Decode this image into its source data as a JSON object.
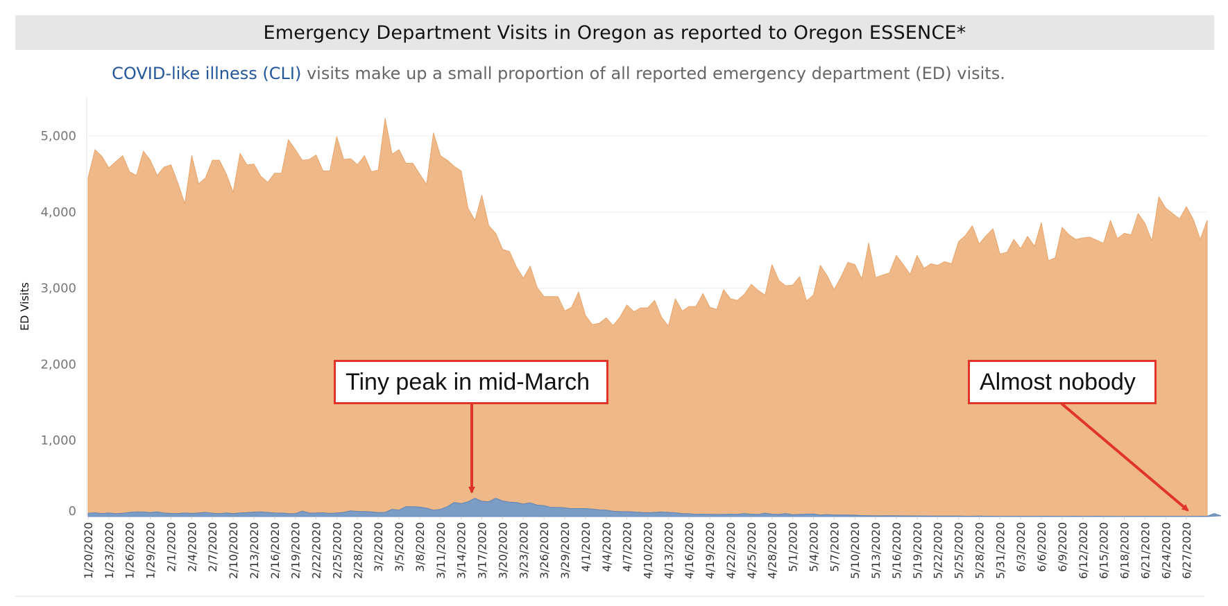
{
  "title": "Emergency Department Visits in Oregon as reported to Oregon ESSENCE*",
  "subtitle": {
    "highlight": "COVID-like illness (CLI)",
    "rest": " visits make up a small proportion of all reported emergency department (ED) visits."
  },
  "annotations": {
    "peak": "Tiny peak in mid-March",
    "nobody": "Almost nobody"
  },
  "colors": {
    "total_fill": "#efb888",
    "total_line": "#e7a56b",
    "cli_fill": "#7b9cc4",
    "cli_line": "#5f84b4",
    "arrow": "#e0342a"
  },
  "chart_data": {
    "type": "area",
    "ylabel": "ED Visits",
    "ylim": [
      0,
      5300
    ],
    "yticks": [
      0,
      1000,
      2000,
      3000,
      4000,
      5000
    ],
    "ytick_labels": [
      "0",
      "1,000",
      "2,000",
      "3,000",
      "4,000",
      "5,000"
    ],
    "grid": true,
    "x_start": "1/20/2020",
    "x_end": "6/29/2020",
    "xtick_labels": [
      "1/20/2020",
      "1/23/2020",
      "1/26/2020",
      "1/29/2020",
      "2/1/2020",
      "2/4/2020",
      "2/7/2020",
      "2/10/2020",
      "2/13/2020",
      "2/16/2020",
      "2/19/2020",
      "2/22/2020",
      "2/25/2020",
      "2/28/2020",
      "3/2/2020",
      "3/5/2020",
      "3/8/2020",
      "3/11/2020",
      "3/14/2020",
      "3/17/2020",
      "3/20/2020",
      "3/23/2020",
      "3/26/2020",
      "3/29/2020",
      "4/1/2020",
      "4/4/2020",
      "4/7/2020",
      "4/10/2020",
      "4/13/2020",
      "4/16/2020",
      "4/19/2020",
      "4/22/2020",
      "4/25/2020",
      "4/28/2020",
      "5/1/2020",
      "5/4/2020",
      "5/7/2020",
      "5/10/2020",
      "5/13/2020",
      "5/16/2020",
      "5/19/2020",
      "5/22/2020",
      "5/25/2020",
      "5/28/2020",
      "5/31/2020",
      "6/3/2020",
      "6/6/2020",
      "6/9/2020",
      "6/12/2020",
      "6/15/2020",
      "6/18/2020",
      "6/21/2020",
      "6/24/2020",
      "6/27/2020"
    ],
    "series": [
      {
        "name": "ED visits",
        "values": [
          4450,
          4820,
          4730,
          4580,
          4660,
          4740,
          4530,
          4480,
          4800,
          4680,
          4480,
          4590,
          4620,
          4380,
          4110,
          4740,
          4370,
          4450,
          4680,
          4680,
          4500,
          4260,
          4770,
          4620,
          4630,
          4470,
          4390,
          4510,
          4510,
          4950,
          4820,
          4680,
          4690,
          4750,
          4540,
          4540,
          4990,
          4690,
          4700,
          4620,
          4740,
          4530,
          4550,
          5230,
          4760,
          4820,
          4640,
          4640,
          4500,
          4360,
          5040,
          4740,
          4680,
          4600,
          4540,
          4050,
          3890,
          4220,
          3820,
          3720,
          3510,
          3480,
          3280,
          3130,
          3290,
          3010,
          2890,
          2890,
          2890,
          2700,
          2750,
          2950,
          2640,
          2520,
          2540,
          2610,
          2510,
          2620,
          2780,
          2690,
          2740,
          2740,
          2840,
          2620,
          2500,
          2860,
          2700,
          2760,
          2760,
          2930,
          2750,
          2720,
          2980,
          2860,
          2840,
          2920,
          3050,
          2970,
          2910,
          3310,
          3100,
          3030,
          3040,
          3150,
          2830,
          2910,
          3300,
          3160,
          2980,
          3150,
          3340,
          3310,
          3120,
          3590,
          3140,
          3170,
          3200,
          3430,
          3310,
          3180,
          3430,
          3260,
          3320,
          3300,
          3350,
          3320,
          3610,
          3690,
          3820,
          3580,
          3690,
          3780,
          3450,
          3470,
          3640,
          3520,
          3680,
          3550,
          3860,
          3360,
          3400,
          3800,
          3700,
          3640,
          3660,
          3670,
          3630,
          3590,
          3890,
          3650,
          3720,
          3700,
          3980,
          3850,
          3620,
          4200,
          4050,
          3980,
          3910,
          4070,
          3900,
          3640,
          3890
        ]
      },
      {
        "name": "COVID-like illness (CLI)",
        "values": [
          45,
          50,
          40,
          48,
          38,
          45,
          55,
          62,
          60,
          52,
          62,
          46,
          42,
          40,
          48,
          42,
          48,
          55,
          45,
          38,
          48,
          40,
          48,
          52,
          58,
          62,
          55,
          48,
          46,
          40,
          38,
          72,
          48,
          46,
          50,
          42,
          48,
          55,
          75,
          68,
          66,
          62,
          52,
          55,
          95,
          85,
          130,
          130,
          125,
          110,
          85,
          95,
          130,
          185,
          170,
          195,
          240,
          200,
          195,
          240,
          205,
          190,
          185,
          165,
          180,
          150,
          145,
          120,
          120,
          115,
          105,
          105,
          105,
          98,
          88,
          85,
          70,
          65,
          65,
          60,
          55,
          50,
          55,
          60,
          55,
          50,
          40,
          38,
          30,
          32,
          30,
          28,
          30,
          32,
          30,
          38,
          32,
          28,
          45,
          32,
          28,
          40,
          25,
          28,
          32,
          35,
          20,
          26,
          22,
          20,
          20,
          18,
          14,
          12,
          10,
          10,
          11,
          10,
          9,
          9,
          8,
          8,
          7,
          6,
          7,
          6,
          6,
          5,
          5,
          6,
          5,
          5,
          4,
          4,
          4,
          5,
          4,
          4,
          5,
          5,
          4,
          4,
          4,
          5,
          4,
          4,
          5,
          4,
          4,
          3,
          4,
          4,
          4,
          5,
          4,
          4,
          4,
          4,
          4,
          4,
          4,
          5,
          4,
          40,
          10
        ]
      }
    ]
  }
}
